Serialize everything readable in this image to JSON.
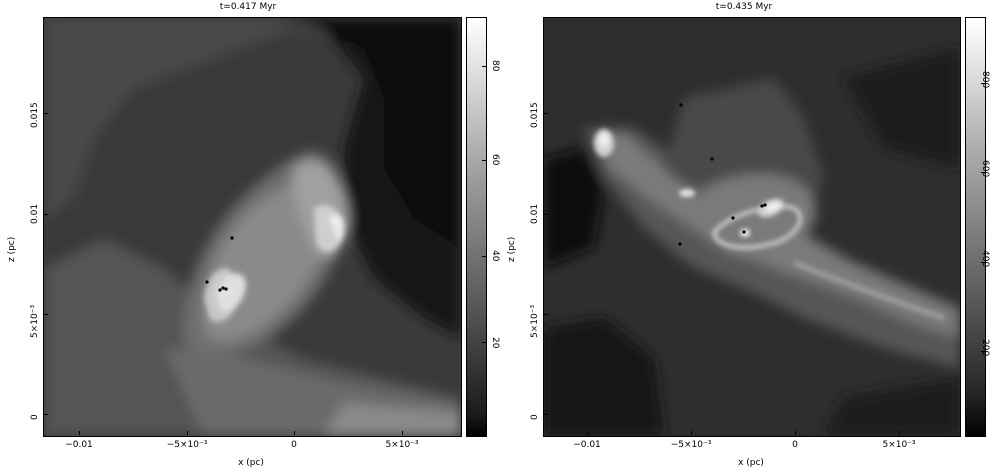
{
  "panels": [
    {
      "title": "t=0.417 Myr",
      "xlabel": "x (pc)",
      "ylabel": "z (pc)",
      "xticks": [
        "−0.01",
        "−5×10⁻³",
        "0",
        "5×10⁻³"
      ],
      "yticks": [
        "0",
        "5×10⁻³",
        "0.01",
        "0.015"
      ],
      "colorbar_ticks": [
        "20",
        "40",
        "60",
        "80"
      ]
    },
    {
      "title": "t=0.435 Myr",
      "xlabel": "x (pc)",
      "ylabel": "z (pc)",
      "xticks": [
        "−0.01",
        "−5×10⁻³",
        "0",
        "5×10⁻³"
      ],
      "yticks": [
        "0",
        "5×10⁻³",
        "0.01",
        "0.015"
      ],
      "colorbar_ticks": [
        "200",
        "400",
        "600",
        "800"
      ]
    }
  ],
  "colors": {
    "background": "#ffffff",
    "map_dark": "#000000",
    "map_light": "#ffffff"
  }
}
